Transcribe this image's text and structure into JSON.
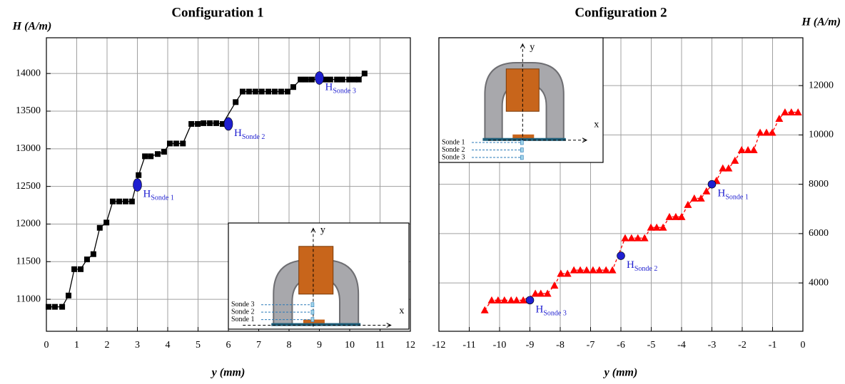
{
  "chart_data": [
    {
      "type": "line",
      "title": "Configuration 1",
      "y_label": "H (A/m)",
      "x_label": "y (mm)",
      "xlim": [
        0,
        12
      ],
      "xticks": [
        0,
        1,
        2,
        3,
        4,
        5,
        6,
        7,
        8,
        9,
        10,
        11,
        12
      ],
      "ylim": [
        10575,
        14475
      ],
      "yticks": [
        11000,
        11500,
        12000,
        12500,
        13000,
        13500,
        14000
      ],
      "grid": true,
      "color": "#000000",
      "marker": "square",
      "line_style": "solid",
      "y_axis_side": "left",
      "x": [
        0.07,
        0.28,
        0.52,
        0.73,
        0.92,
        1.13,
        1.34,
        1.55,
        1.76,
        1.98,
        2.19,
        2.4,
        2.61,
        2.82,
        3.04,
        3.25,
        3.44,
        3.67,
        3.88,
        4.07,
        4.28,
        4.5,
        4.78,
        4.99,
        5.18,
        5.39,
        5.6,
        5.81,
        6.24,
        6.47,
        6.68,
        6.89,
        7.1,
        7.32,
        7.53,
        7.74,
        7.95,
        8.14,
        8.38,
        8.56,
        8.75,
        9.18,
        9.36,
        9.58,
        9.76,
        9.98,
        10.16,
        10.3,
        10.49
      ],
      "values": [
        10900,
        10900,
        10900,
        11050,
        11400,
        11400,
        11530,
        11600,
        11950,
        12020,
        12300,
        12300,
        12300,
        12300,
        12650,
        12900,
        12900,
        12930,
        12960,
        13070,
        13070,
        13070,
        13330,
        13330,
        13340,
        13340,
        13340,
        13330,
        13620,
        13760,
        13760,
        13760,
        13760,
        13760,
        13760,
        13760,
        13760,
        13820,
        13920,
        13920,
        13920,
        13920,
        13920,
        13920,
        13920,
        13920,
        13920,
        13920,
        14000
      ],
      "probe_color": "#1f1fd0",
      "probes": [
        {
          "x": 3,
          "y": 12520,
          "label": "H",
          "sub": "Sonde 1"
        },
        {
          "x": 6,
          "y": 13330,
          "label": "H",
          "sub": "Sonde 2"
        },
        {
          "x": 9,
          "y": 13940,
          "label": "H",
          "sub": "Sonde 3"
        }
      ],
      "inset": {
        "sondes": [
          "Sonde 3",
          "Sonde 2",
          "Sonde 1"
        ],
        "x_axis": "x",
        "y_axis": "y"
      }
    },
    {
      "type": "line",
      "title": "Configuration 2",
      "y_label": "H (A/m)",
      "x_label": "y (mm)",
      "xlim": [
        -12,
        0
      ],
      "xticks": [
        -12,
        -11,
        -10,
        -9,
        -8,
        -7,
        -6,
        -5,
        -4,
        -3,
        -2,
        -1,
        0
      ],
      "ylim": [
        2040,
        13940
      ],
      "yticks": [
        4000,
        6000,
        8000,
        10000,
        12000
      ],
      "grid": true,
      "color": "#ff0000",
      "marker": "triangle",
      "line_style": "dashed",
      "y_axis_side": "right",
      "x": [
        -10.49,
        -10.26,
        -10.05,
        -9.84,
        -9.62,
        -9.44,
        -9.22,
        -8.82,
        -8.64,
        -8.42,
        -8.19,
        -7.98,
        -7.76,
        -7.55,
        -7.34,
        -7.13,
        -6.92,
        -6.71,
        -6.49,
        -6.28,
        -5.86,
        -5.65,
        -5.44,
        -5.22,
        -5.01,
        -4.82,
        -4.61,
        -4.4,
        -4.19,
        -4.0,
        -3.79,
        -3.58,
        -3.36,
        -3.18,
        -2.85,
        -2.64,
        -2.45,
        -2.24,
        -2.02,
        -1.81,
        -1.62,
        -1.41,
        -1.2,
        -1.01,
        -0.78,
        -0.59,
        -0.38,
        -0.16
      ],
      "values": [
        2900,
        3300,
        3300,
        3300,
        3300,
        3300,
        3300,
        3570,
        3570,
        3570,
        3900,
        4380,
        4380,
        4520,
        4520,
        4520,
        4520,
        4520,
        4520,
        4520,
        5820,
        5820,
        5820,
        5820,
        6250,
        6250,
        6250,
        6680,
        6680,
        6680,
        7170,
        7430,
        7430,
        7720,
        8150,
        8650,
        8650,
        8960,
        9390,
        9390,
        9390,
        10100,
        10100,
        10100,
        10660,
        10920,
        10920,
        10920
      ],
      "probe_color": "#1f1fd0",
      "probes": [
        {
          "x": -3,
          "y": 8000,
          "label": "H",
          "sub": "Sonde 1"
        },
        {
          "x": -6,
          "y": 5100,
          "label": "H",
          "sub": "Sonde 2"
        },
        {
          "x": -9,
          "y": 3300,
          "label": "H",
          "sub": "Sonde 3"
        }
      ],
      "inset": {
        "sondes": [
          "Sonde 1",
          "Sonde 2",
          "Sonde 3"
        ],
        "x_axis": "x",
        "y_axis": "y"
      }
    }
  ]
}
